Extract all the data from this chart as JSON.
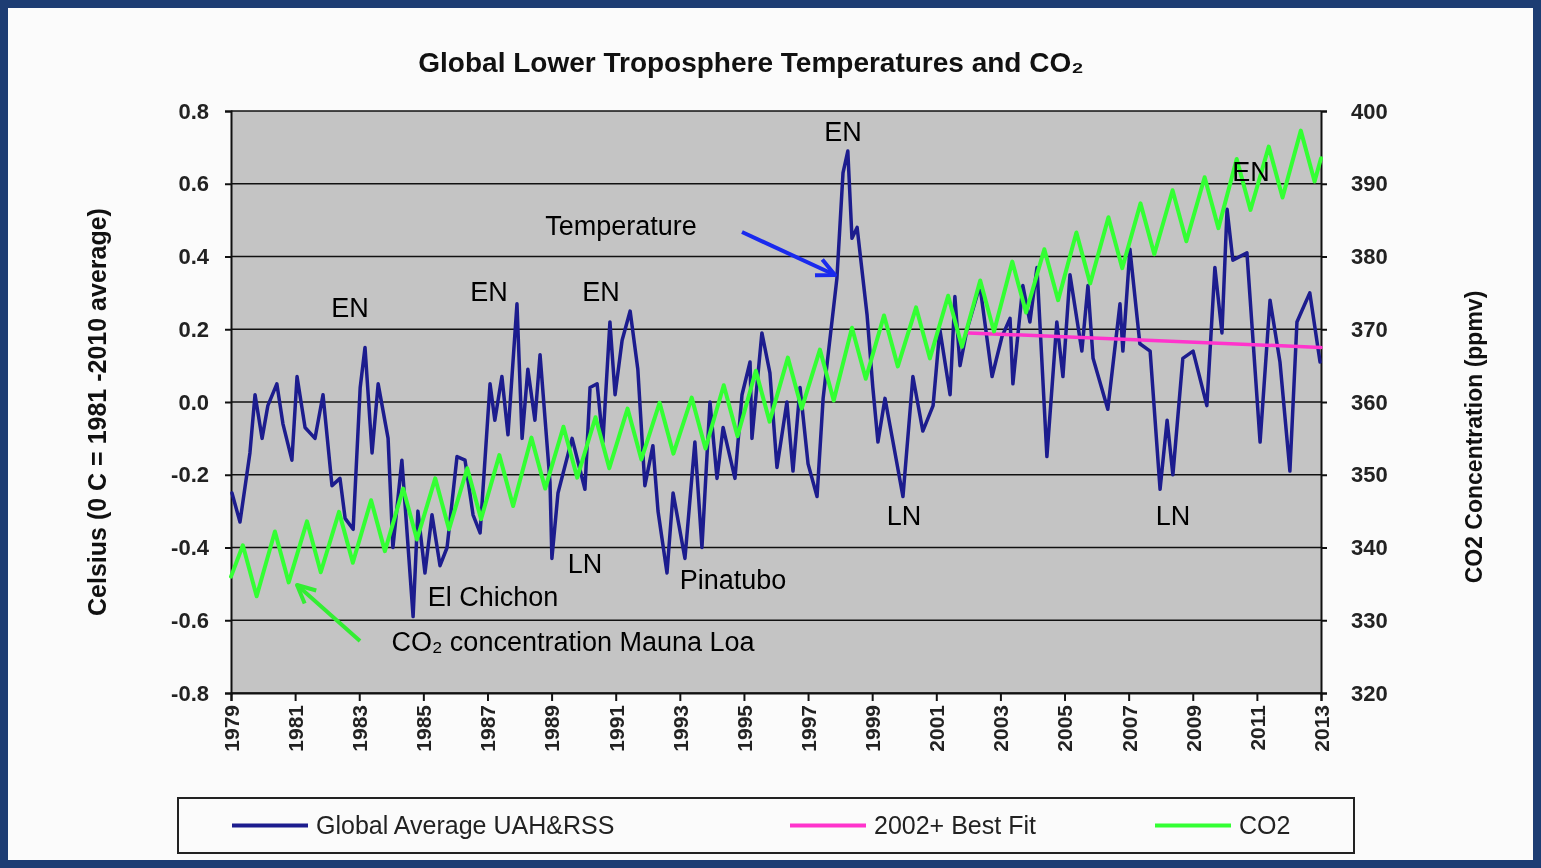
{
  "chart_data": {
    "type": "line",
    "title": "Global Lower Troposphere Temperatures and CO₂",
    "ylabel": "Celsius (0 C = 1981 -2010 average)",
    "y2label": "CO2 Concentration (ppmv)",
    "xlim": [
      1979,
      2013
    ],
    "xticks": [
      {
        "value": 1979,
        "label": "1979"
      },
      {
        "value": 1981,
        "label": "1981"
      },
      {
        "value": 1983,
        "label": "1983"
      },
      {
        "value": 1985,
        "label": "1985"
      },
      {
        "value": 1987,
        "label": "1987"
      },
      {
        "value": 1989,
        "label": "1989"
      },
      {
        "value": 1991,
        "label": "1991"
      },
      {
        "value": 1993,
        "label": "1993"
      },
      {
        "value": 1995,
        "label": "1995"
      },
      {
        "value": 1997,
        "label": "1997"
      },
      {
        "value": 1999,
        "label": "1999"
      },
      {
        "value": 2001,
        "label": "2001"
      },
      {
        "value": 2003,
        "label": "2003"
      },
      {
        "value": 2005,
        "label": "2005"
      },
      {
        "value": 2007,
        "label": "2007"
      },
      {
        "value": 2009,
        "label": "2009"
      },
      {
        "value": 2011,
        "label": "2011"
      },
      {
        "value": 2013,
        "label": "2013"
      }
    ],
    "ylim": [
      -0.8,
      0.8
    ],
    "yticks": [
      {
        "value": -0.8,
        "label": "-0.8"
      },
      {
        "value": -0.6,
        "label": "-0.6"
      },
      {
        "value": -0.4,
        "label": "-0.4"
      },
      {
        "value": -0.2,
        "label": "-0.2"
      },
      {
        "value": 0,
        "label": "0.0"
      },
      {
        "value": 0.2,
        "label": "0.2"
      },
      {
        "value": 0.4,
        "label": "0.4"
      },
      {
        "value": 0.6,
        "label": "0.6"
      },
      {
        "value": 0.8,
        "label": "0.8"
      }
    ],
    "y2lim": [
      320,
      400
    ],
    "y2ticks": [
      320,
      330,
      340,
      350,
      360,
      370,
      380,
      390,
      400
    ],
    "grid": "y",
    "legend": "bottom",
    "series": [
      {
        "name": "Global Average UAH&RSS",
        "color": "#1c1c8e",
        "x": [
          1979.03,
          1979.28,
          1979.59,
          1979.75,
          1979.97,
          1980.15,
          1980.43,
          1980.62,
          1980.9,
          1981.06,
          1981.31,
          1981.62,
          1981.87,
          1982.15,
          1982.4,
          1982.56,
          1982.81,
          1983.03,
          1983.18,
          1983.4,
          1983.59,
          1983.9,
          1984.05,
          1984.33,
          1984.68,
          1984.83,
          1985.05,
          1985.27,
          1985.52,
          1985.74,
          1986.05,
          1986.3,
          1986.55,
          1986.77,
          1987.08,
          1987.23,
          1987.45,
          1987.64,
          1987.92,
          1988.08,
          1988.26,
          1988.48,
          1988.64,
          1988.95,
          1989.01,
          1989.2,
          1989.64,
          1990.04,
          1990.2,
          1990.42,
          1990.6,
          1990.82,
          1990.98,
          1991.2,
          1991.45,
          1991.69,
          1991.91,
          1992.16,
          1992.32,
          1992.6,
          1992.79,
          1993.16,
          1993.47,
          1993.69,
          1993.94,
          1994.16,
          1994.35,
          1994.72,
          1994.94,
          1995.19,
          1995.25,
          1995.56,
          1995.81,
          1996.03,
          1996.34,
          1996.53,
          1996.75,
          1997,
          1997.28,
          1997.47,
          1997.9,
          1998.09,
          1998.24,
          1998.37,
          1998.53,
          1998.84,
          1999.02,
          1999.18,
          1999.4,
          1999.65,
          1999.96,
          2000.27,
          2000.58,
          2000.9,
          2001.11,
          2001.43,
          2001.58,
          2001.74,
          2001.96,
          2002.36,
          2002.74,
          2003.05,
          2003.3,
          2003.39,
          2003.7,
          2003.92,
          2004.14,
          2004.45,
          2004.76,
          2004.95,
          2005.17,
          2005.54,
          2005.73,
          2005.89,
          2006.35,
          2006.73,
          2006.82,
          2007.04,
          2007.35,
          2007.67,
          2007.98,
          2008.2,
          2008.38,
          2008.69,
          2009.01,
          2009.44,
          2009.69,
          2009.91,
          2010.07,
          2010.25,
          2010.69,
          2011.1,
          2011.41,
          2011.72,
          2012.03,
          2012.25,
          2012.4,
          2012.65,
          2012.97
        ],
        "values": [
          -0.25,
          -0.33,
          -0.14,
          0.02,
          -0.1,
          -0.01,
          0.05,
          -0.06,
          -0.16,
          0.07,
          -0.07,
          -0.1,
          0.02,
          -0.23,
          -0.21,
          -0.32,
          -0.35,
          0.04,
          0.15,
          -0.14,
          0.05,
          -0.1,
          -0.4,
          -0.16,
          -0.59,
          -0.3,
          -0.47,
          -0.31,
          -0.45,
          -0.4,
          -0.15,
          -0.16,
          -0.31,
          -0.36,
          0.05,
          -0.05,
          0.07,
          -0.09,
          0.27,
          -0.1,
          0.09,
          -0.05,
          0.13,
          -0.22,
          -0.43,
          -0.25,
          -0.1,
          -0.24,
          0.04,
          0.05,
          -0.11,
          0.22,
          0.02,
          0.17,
          0.25,
          0.09,
          -0.23,
          -0.12,
          -0.3,
          -0.47,
          -0.25,
          -0.43,
          -0.11,
          -0.4,
          0,
          -0.21,
          -0.07,
          -0.21,
          0.02,
          0.11,
          -0.1,
          0.19,
          0.08,
          -0.18,
          0,
          -0.19,
          0.04,
          -0.17,
          -0.26,
          0.01,
          0.34,
          0.63,
          0.69,
          0.45,
          0.48,
          0.24,
          0.04,
          -0.11,
          0.01,
          -0.11,
          -0.26,
          0.07,
          -0.08,
          -0.01,
          0.2,
          0.02,
          0.29,
          0.1,
          0.2,
          0.32,
          0.07,
          0.18,
          0.23,
          0.05,
          0.32,
          0.22,
          0.37,
          -0.15,
          0.22,
          0.07,
          0.35,
          0.14,
          0.32,
          0.12,
          -0.02,
          0.27,
          0.14,
          0.42,
          0.16,
          0.14,
          -0.24,
          -0.05,
          -0.2,
          0.12,
          0.14,
          -0.01,
          0.37,
          0.19,
          0.53,
          0.39,
          0.41,
          -0.11,
          0.28,
          0.11,
          -0.19,
          0.22,
          0.25,
          0.3,
          0.11
        ]
      },
      {
        "name": "2002+ Best Fit",
        "color": "#ff33cc",
        "x": [
          2002,
          2013
        ],
        "values": [
          0.19,
          0.15
        ]
      },
      {
        "name": "CO2",
        "color": "#33ff33",
        "axis": "y2",
        "x": [
          1979,
          1979.37,
          1979.8,
          1980.37,
          1980.8,
          1981.37,
          1981.8,
          1982.37,
          1982.8,
          1983.37,
          1983.8,
          1984.37,
          1984.8,
          1985.37,
          1985.8,
          1986.37,
          1986.8,
          1987.37,
          1987.8,
          1988.37,
          1988.8,
          1989.37,
          1989.8,
          1990.37,
          1990.8,
          1991.37,
          1991.8,
          1992.37,
          1992.8,
          1993.37,
          1993.8,
          1994.37,
          1994.8,
          1995.37,
          1995.8,
          1996.37,
          1996.8,
          1997.37,
          1997.8,
          1998.37,
          1998.8,
          1999.37,
          1999.8,
          2000.37,
          2000.8,
          2001.37,
          2001.8,
          2002.37,
          2002.8,
          2003.37,
          2003.8,
          2004.37,
          2004.8,
          2005.37,
          2005.8,
          2006.37,
          2006.8,
          2007.37,
          2007.8,
          2008.37,
          2008.8,
          2009.37,
          2009.8,
          2010.37,
          2010.8,
          2011.37,
          2011.8,
          2012.37,
          2012.8,
          2013
        ],
        "values": [
          336,
          340.3,
          333.3,
          342.2,
          335.2,
          343.6,
          336.6,
          344.9,
          337.9,
          346.5,
          339.5,
          348.1,
          341.1,
          349.5,
          342.5,
          350.9,
          343.9,
          352.7,
          345.7,
          355.1,
          348.1,
          356.6,
          349.6,
          357.9,
          350.9,
          359.1,
          352.1,
          359.9,
          352.9,
          360.6,
          353.6,
          362.3,
          355.3,
          364.3,
          357.3,
          366.1,
          359.1,
          367.2,
          360.2,
          370.2,
          363.2,
          371.9,
          364.9,
          373,
          366,
          374.6,
          367.6,
          376.7,
          369.7,
          379.3,
          372.3,
          381,
          374,
          383.3,
          376.3,
          385.4,
          378.4,
          387.3,
          380.3,
          389.1,
          382.1,
          390.9,
          383.9,
          393.4,
          386.4,
          395.1,
          388.1,
          397.3,
          390.3,
          393.5
        ]
      }
    ],
    "annotations": [
      "EN",
      "EN",
      "EN",
      "EN",
      "EN",
      "LN",
      "LN",
      "LN",
      "El Chichon",
      "Pinatubo",
      "Temperature",
      "CO₂ concentration Mauna Loa"
    ]
  }
}
